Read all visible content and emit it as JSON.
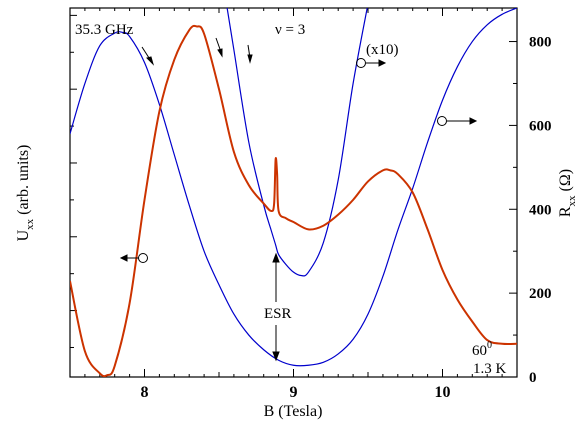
{
  "chart_data": {
    "type": "line",
    "xlabel": "B (Tesla)",
    "ylabel_left_main": "U",
    "ylabel_left_sub": "xx",
    "ylabel_left_rest": " (arb. units)",
    "ylabel_right_main": "R",
    "ylabel_right_sub": "xx",
    "ylabel_right_rest": " (Ω)",
    "xlim": [
      7.5,
      10.5
    ],
    "x_ticks": [
      "8",
      "9",
      "10"
    ],
    "y_right_lim": [
      0,
      880
    ],
    "y_right_ticks": [
      "0",
      "200",
      "400",
      "600",
      "800"
    ],
    "y_left_lim": [
      0,
      100
    ],
    "annotations": {
      "frequency": "35.3 GHz",
      "filling": "ν = 3",
      "scale": "(x10)",
      "esr": "ESR",
      "angle": "60",
      "angle_sup": "0",
      "temperature": "1.3 K"
    },
    "series": [
      {
        "color": "#0000cc",
        "axis": "right",
        "x": [
          7.5,
          7.6,
          7.7,
          7.8,
          7.85,
          7.9,
          8.0,
          8.1,
          8.2,
          8.3,
          8.4,
          8.5,
          8.6,
          8.7,
          8.8,
          8.9,
          9.0,
          9.1,
          9.2,
          9.3,
          9.4,
          9.5,
          9.6,
          9.7,
          9.8,
          9.9,
          10.0,
          10.1,
          10.2,
          10.3,
          10.4,
          10.5
        ],
        "y": [
          580,
          700,
          790,
          820,
          822,
          812,
          750,
          650,
          530,
          410,
          300,
          220,
          150,
          100,
          65,
          40,
          28,
          28,
          35,
          55,
          90,
          150,
          240,
          350,
          450,
          560,
          660,
          740,
          800,
          840,
          865,
          880
        ]
      },
      {
        "color": "#0000cc",
        "axis": "right",
        "x": [
          8.55,
          8.6,
          8.7,
          8.8,
          8.85,
          8.88,
          8.9,
          8.95,
          9.0,
          9.05,
          9.1,
          9.2,
          9.3,
          9.4,
          9.5
        ],
        "y": [
          890,
          780,
          560,
          410,
          350,
          315,
          292,
          268,
          250,
          242,
          250,
          320,
          470,
          700,
          890
        ]
      },
      {
        "color": "#cc3300",
        "axis": "left",
        "x": [
          7.5,
          7.6,
          7.7,
          7.75,
          7.8,
          7.9,
          8.0,
          8.1,
          8.2,
          8.3,
          8.35,
          8.4,
          8.5,
          8.6,
          8.7,
          8.8,
          8.85,
          8.87,
          8.88,
          8.89,
          8.9,
          8.95,
          9.0,
          9.1,
          9.2,
          9.3,
          9.4,
          9.5,
          9.6,
          9.65,
          9.7,
          9.8,
          9.9,
          10.0,
          10.1,
          10.2,
          10.3,
          10.4,
          10.5
        ],
        "y": [
          26,
          7,
          1,
          0.5,
          3,
          20,
          48,
          72,
          86,
          94,
          95,
          93,
          78,
          61,
          52,
          47,
          45,
          47,
          59,
          55,
          45,
          43,
          42,
          40,
          41,
          44,
          48,
          53,
          56,
          56,
          55,
          50,
          40,
          29,
          21,
          15,
          10,
          9,
          9
        ]
      }
    ]
  }
}
